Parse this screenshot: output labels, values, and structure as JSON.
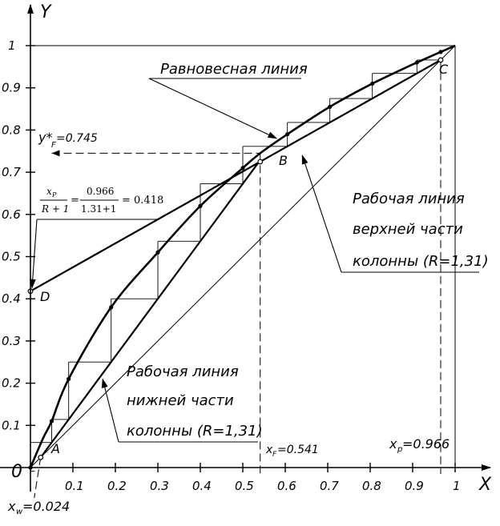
{
  "axes": {
    "x_label": "X",
    "y_label": "Y",
    "origin_label": "0",
    "x_ticks": [
      "0.1",
      "0.2",
      "0.3",
      "0.4",
      "0.5",
      "0.6",
      "0.7",
      "0.8",
      "0.9",
      "1"
    ],
    "y_ticks": [
      "0.1",
      "0.2",
      "0.3",
      "0.4",
      "0.5",
      "0.6",
      "0.7",
      "0.8",
      "0.9",
      "1"
    ],
    "range": [
      0,
      1
    ]
  },
  "labels": {
    "equilibrium": "Равновесная линия",
    "upper_line_1": "Рабочая линия",
    "upper_line_2": "верхней части",
    "upper_line_3": "колонны (R=1,31)",
    "lower_line_1": "Рабочая линия",
    "lower_line_2": "нижней части",
    "lower_line_3": "колонны (R=1,31)",
    "point_a": "A",
    "point_b": "B",
    "point_c": "C",
    "point_d": "D",
    "yf_star": "y*",
    "yf_sub": "F",
    "yf_value": "=0.745",
    "xf": "x",
    "xf_sub": "F",
    "xf_value": "=0.541",
    "xp": "x",
    "xp_sub": "p",
    "xp_value": "=0.966",
    "xw": "x",
    "xw_sub": "w",
    "xw_value": "=0.024"
  },
  "formula": {
    "num_left": "x",
    "num_left_sub": "P",
    "den_left": "R + 1",
    "num_mid": "0.966",
    "den_mid": "1.31+1",
    "result": "= 0.418"
  },
  "chart_data": {
    "type": "line",
    "xlim": [
      0,
      1
    ],
    "ylim": [
      0,
      1
    ],
    "x_D": 0.966,
    "x_F": 0.541,
    "x_W": 0.024,
    "y_F_star": 0.745,
    "intercept_D": 0.418,
    "equilibrium_points": [
      [
        0,
        0
      ],
      [
        0.05,
        0.11
      ],
      [
        0.09,
        0.21
      ],
      [
        0.19,
        0.38
      ],
      [
        0.3,
        0.51
      ],
      [
        0.4,
        0.62
      ],
      [
        0.5,
        0.71
      ],
      [
        0.605,
        0.79
      ],
      [
        0.705,
        0.855
      ],
      [
        0.805,
        0.91
      ],
      [
        0.91,
        0.96
      ],
      [
        0.966,
        0.985
      ]
    ],
    "equilibrium_curve": [
      [
        0,
        0
      ],
      [
        0.03,
        0.07
      ],
      [
        0.05,
        0.11
      ],
      [
        0.09,
        0.21
      ],
      [
        0.19,
        0.38
      ],
      [
        0.3,
        0.51
      ],
      [
        0.4,
        0.62
      ],
      [
        0.5,
        0.71
      ],
      [
        0.541,
        0.745
      ],
      [
        0.605,
        0.79
      ],
      [
        0.705,
        0.855
      ],
      [
        0.805,
        0.91
      ],
      [
        0.91,
        0.96
      ],
      [
        1.0,
        1.0
      ]
    ],
    "upper_operating": [
      [
        0,
        0.418
      ],
      [
        0.966,
        0.966
      ]
    ],
    "lower_operating": [
      [
        0.024,
        0.024
      ],
      [
        0.541,
        0.7285
      ]
    ],
    "diagonal": [
      [
        0,
        0
      ],
      [
        1,
        1
      ]
    ]
  }
}
